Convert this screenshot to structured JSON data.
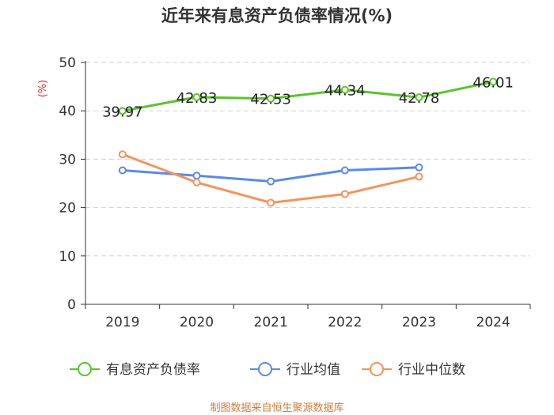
{
  "chart_data": {
    "type": "line",
    "title": "近年来有息资产负债率情况(%)",
    "ylabel": "(%)",
    "xlabel": "",
    "categories": [
      "2019",
      "2020",
      "2021",
      "2022",
      "2023",
      "2024"
    ],
    "ylim": [
      0,
      50
    ],
    "yticks": [
      0,
      10,
      20,
      30,
      40,
      50
    ],
    "grid": true,
    "legend_position": "bottom",
    "series": [
      {
        "name": "有息资产负债率",
        "color": "#5ac42a",
        "values": [
          39.97,
          42.83,
          42.53,
          44.34,
          42.78,
          46.01
        ],
        "labels": [
          "39.97",
          "42.83",
          "42.53",
          "44.34",
          "42.78",
          "46.01"
        ]
      },
      {
        "name": "行业均值",
        "color": "#5a8ae6",
        "values": [
          27.7,
          26.6,
          25.4,
          27.7,
          28.3,
          null
        ]
      },
      {
        "name": "行业中位数",
        "color": "#f4935c",
        "values": [
          31.0,
          25.2,
          21.0,
          22.8,
          26.4,
          null
        ]
      }
    ]
  },
  "footer": "制图数据来自恒生聚源数据库"
}
